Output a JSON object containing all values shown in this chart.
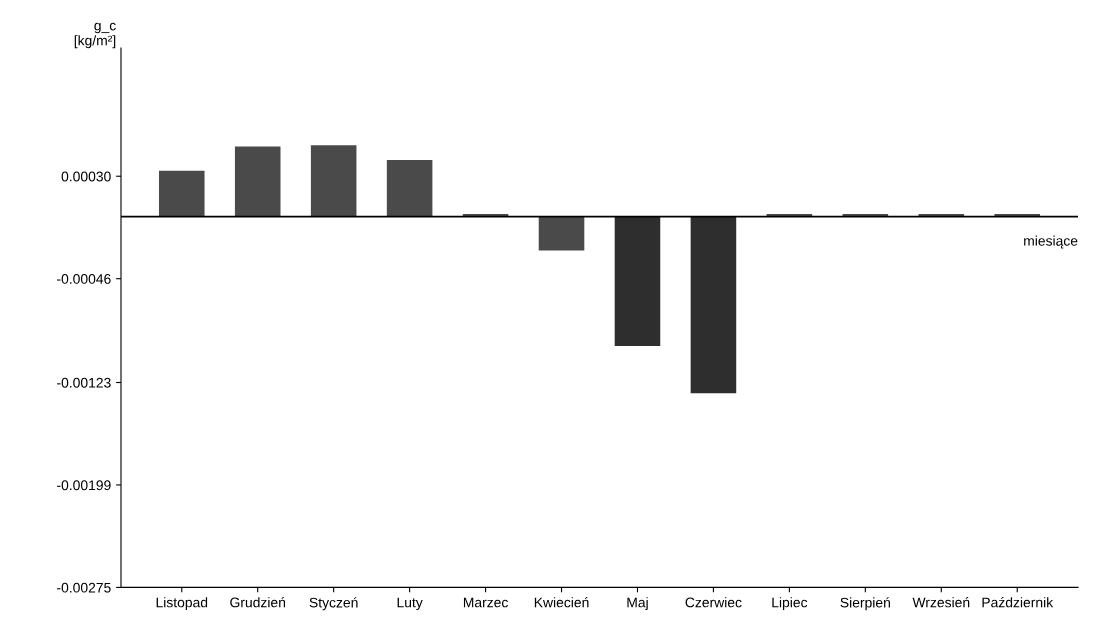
{
  "chart_data": {
    "type": "bar",
    "categories": [
      "Listopad",
      "Grudzień",
      "Styczeń",
      "Luty",
      "Marzec",
      "Kwiecień",
      "Maj",
      "Czerwiec",
      "Lipiec",
      "Sierpień",
      "Wrzesień",
      "Październik"
    ],
    "values": [
      0.00034,
      0.00052,
      0.00053,
      0.00042,
      2e-05,
      -0.00025,
      -0.00096,
      -0.00131,
      2e-05,
      2e-05,
      2e-05,
      2e-05
    ],
    "colors": [
      "#4a4a4a",
      "#4a4a4a",
      "#4a4a4a",
      "#4a4a4a",
      "#4a4a4a",
      "#4a4a4a",
      "#2e2e2e",
      "#2e2e2e",
      "#4a4a4a",
      "#4a4a4a",
      "#4a4a4a",
      "#4a4a4a"
    ],
    "xlabel": "miesiące",
    "ylabel": "g_c\n[kg/m²]",
    "ylim": [
      -0.00275,
      0.00125
    ],
    "yticks": [
      {
        "value": -0.00275,
        "label": "-0.00275"
      },
      {
        "value": -0.00199,
        "label": "-0.00199"
      },
      {
        "value": -0.00123,
        "label": "-0.00123"
      },
      {
        "value": -0.00046,
        "label": "-0.00046"
      },
      {
        "value": 0.0003,
        "label": "0.00030"
      }
    ],
    "ref_lines": [
      {
        "axis": "y",
        "value": 0,
        "color": "#000000"
      }
    ],
    "grid": false,
    "legend": false
  }
}
